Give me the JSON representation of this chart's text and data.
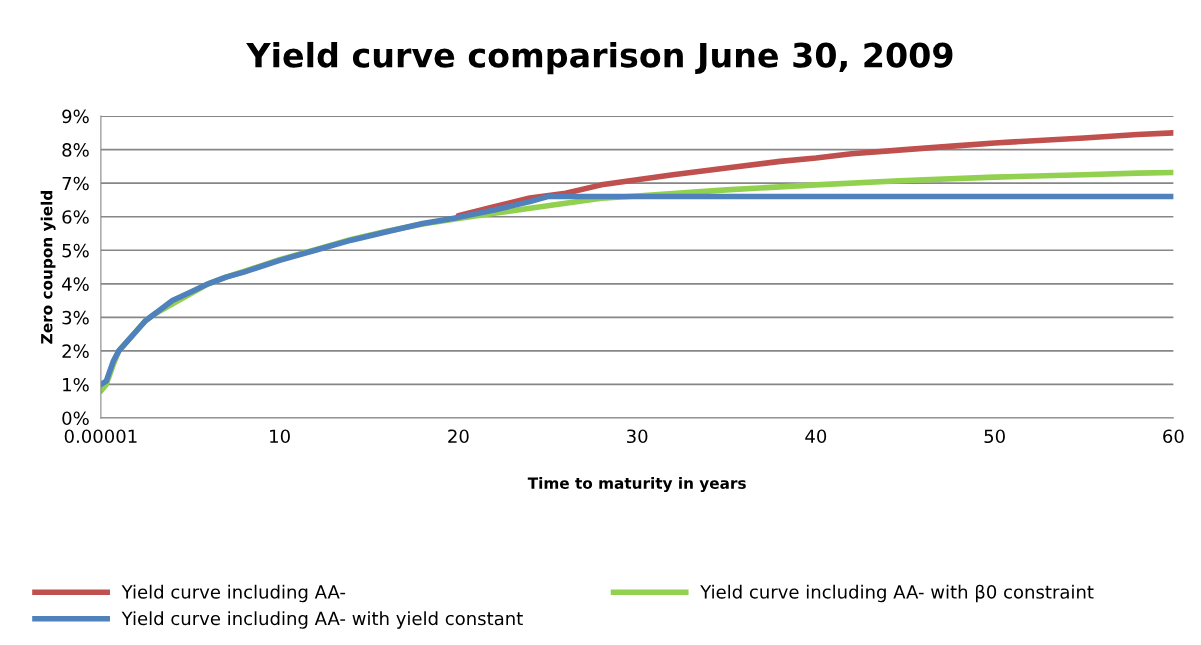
{
  "chart_data": {
    "type": "line",
    "title": "Yield curve comparison June 30, 2009",
    "xlabel": "Time to maturity in years",
    "ylabel": "Zero coupon yield",
    "xlim": [
      1e-05,
      60
    ],
    "xticks": [
      {
        "value": 1e-05,
        "label": "0.00001"
      },
      10,
      20,
      30,
      40,
      50,
      60
    ],
    "ylim": [
      0,
      9
    ],
    "yticks": [
      {
        "value": 0,
        "label": "0%"
      },
      {
        "value": 1,
        "label": "1%"
      },
      {
        "value": 2,
        "label": "2%"
      },
      {
        "value": 3,
        "label": "3%"
      },
      {
        "value": 4,
        "label": "4%"
      },
      {
        "value": 5,
        "label": "5%"
      },
      {
        "value": 6,
        "label": "6%"
      },
      {
        "value": 7,
        "label": "7%"
      },
      {
        "value": 8,
        "label": "8%"
      },
      {
        "value": 9,
        "label": "9%"
      }
    ],
    "grid": "y",
    "legend": "bottom",
    "marker": "none",
    "line_style": "solid",
    "series": [
      {
        "name": "Yield curve including AA-",
        "color": "#c0504d",
        "x": [
          20,
          22,
          24,
          26,
          28,
          30,
          32,
          35,
          38,
          40,
          42,
          45,
          48,
          50,
          55,
          58,
          60
        ],
        "values": [
          6.03,
          6.3,
          6.56,
          6.7,
          6.95,
          7.1,
          7.25,
          7.45,
          7.65,
          7.75,
          7.88,
          8.0,
          8.12,
          8.2,
          8.35,
          8.45,
          8.5
        ]
      },
      {
        "name": "Yield curve including AA- with β0 constraint",
        "color": "#92d050",
        "x": [
          1e-05,
          0.3,
          0.7,
          1,
          2.5,
          3,
          6,
          7,
          8,
          10,
          12,
          14,
          16,
          18,
          20,
          22,
          24,
          26,
          28,
          30,
          35,
          40,
          45,
          50,
          55,
          58,
          60
        ],
        "values": [
          0.8,
          1.0,
          1.6,
          2.0,
          2.9,
          3.1,
          4.0,
          4.2,
          4.37,
          4.72,
          5.02,
          5.32,
          5.57,
          5.78,
          5.95,
          6.1,
          6.25,
          6.4,
          6.55,
          6.62,
          6.8,
          6.95,
          7.08,
          7.18,
          7.25,
          7.3,
          7.32
        ]
      },
      {
        "name": "Yield curve including AA- with yield constant",
        "color": "#4f81bd",
        "x": [
          1e-05,
          0.3,
          0.7,
          1,
          1.5,
          2,
          2.5,
          3,
          4,
          5,
          6,
          7,
          8,
          10,
          12,
          14,
          16,
          18,
          20,
          22,
          24,
          25,
          30,
          40,
          50,
          60
        ],
        "values": [
          1.0,
          1.1,
          1.7,
          2.0,
          2.3,
          2.6,
          2.9,
          3.1,
          3.5,
          3.75,
          4.0,
          4.2,
          4.35,
          4.7,
          5.0,
          5.3,
          5.55,
          5.8,
          5.98,
          6.2,
          6.45,
          6.6,
          6.6,
          6.6,
          6.6,
          6.6
        ]
      }
    ]
  }
}
